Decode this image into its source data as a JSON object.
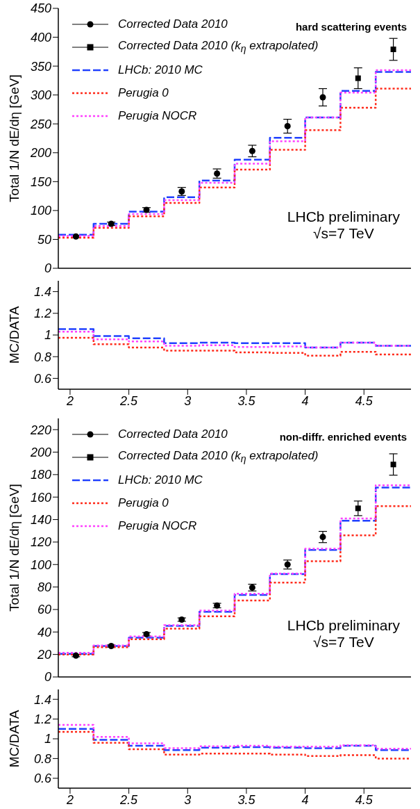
{
  "chart_data": [
    {
      "type": "step",
      "ylabel": "Total 1/N dE/dη [GeV]",
      "annotations": [
        "hard scattering events",
        "LHCb preliminary",
        "√s=7 TeV"
      ],
      "xlim": [
        1.9,
        4.9
      ],
      "xticks": [
        2,
        2.5,
        3,
        3.5,
        4,
        4.5
      ],
      "ylim": [
        0,
        450
      ],
      "yticks": [
        0,
        50,
        100,
        150,
        200,
        250,
        300,
        350,
        400,
        450
      ],
      "tick_labels": "y",
      "legend": "top left",
      "series": [
        {
          "name": "Corrected Data 2010",
          "type": "scatter",
          "marker": "circle",
          "color": "#000000",
          "x": [
            2.05,
            2.35,
            2.65,
            2.95,
            3.25,
            3.55,
            3.85,
            4.15
          ],
          "values": [
            55,
            77,
            101,
            133,
            164,
            203,
            246,
            296
          ],
          "errors": [
            2,
            3,
            4,
            7,
            8,
            10,
            12,
            15
          ]
        },
        {
          "name": "Corrected Data 2010 (k$_{η}$ extrapolated)",
          "type": "scatter",
          "marker": "square",
          "color": "#000000",
          "x": [
            4.45,
            4.75
          ],
          "values": [
            329,
            379
          ],
          "errors": [
            18,
            19
          ]
        },
        {
          "name": "LHCb: 2010 MC",
          "color": "#2040ff",
          "line_style": "dashed",
          "x": [
            1.9,
            2.2,
            2.5,
            2.8,
            3.1,
            3.4,
            3.7,
            4.0,
            4.3,
            4.6,
            4.9
          ],
          "values": [
            58,
            77,
            98,
            123,
            152,
            188,
            226,
            261,
            307,
            340,
            340
          ]
        },
        {
          "name": "Perugia 0",
          "color": "#ff2a1a",
          "line_style": "dotted",
          "x": [
            1.9,
            2.2,
            2.5,
            2.8,
            3.1,
            3.4,
            3.7,
            4.0,
            4.3,
            4.6,
            4.9
          ],
          "values": [
            53,
            70,
            90,
            113,
            140,
            171,
            205,
            239,
            278,
            311,
            311
          ]
        },
        {
          "name": "Perugia NOCR",
          "color": "#ff40ff",
          "line_style": "dotted",
          "x": [
            1.9,
            2.2,
            2.5,
            2.8,
            3.1,
            3.4,
            3.7,
            4.0,
            4.3,
            4.6,
            4.9
          ],
          "values": [
            56,
            73,
            94,
            118,
            148,
            181,
            220,
            261,
            304,
            343,
            343
          ]
        }
      ]
    },
    {
      "type": "step",
      "ylabel": "MC/DATA",
      "xlim": [
        1.9,
        4.9
      ],
      "xticks": [
        2,
        2.5,
        3,
        3.5,
        4,
        4.5
      ],
      "ylim": [
        0.5,
        1.5
      ],
      "yticks": [
        0.6,
        0.8,
        1,
        1.2,
        1.4
      ],
      "series": [
        {
          "color": "#2040ff",
          "line_style": "dashed",
          "x": [
            1.9,
            2.2,
            2.5,
            2.8,
            3.1,
            3.4,
            3.7,
            4.0,
            4.3,
            4.6,
            4.9
          ],
          "values": [
            1.055,
            0.99,
            0.97,
            0.925,
            0.93,
            0.925,
            0.925,
            0.885,
            0.93,
            0.9,
            0.9
          ]
        },
        {
          "color": "#ff2a1a",
          "line_style": "dotted",
          "x": [
            1.9,
            2.2,
            2.5,
            2.8,
            3.1,
            3.4,
            3.7,
            4.0,
            4.3,
            4.6,
            4.9
          ],
          "values": [
            0.975,
            0.915,
            0.885,
            0.855,
            0.855,
            0.84,
            0.835,
            0.81,
            0.845,
            0.82,
            0.82
          ]
        },
        {
          "color": "#ff40ff",
          "line_style": "dotted",
          "x": [
            1.9,
            2.2,
            2.5,
            2.8,
            3.1,
            3.4,
            3.7,
            4.0,
            4.3,
            4.6,
            4.9
          ],
          "values": [
            1.03,
            0.96,
            0.94,
            0.9,
            0.905,
            0.89,
            0.895,
            0.885,
            0.93,
            0.9,
            0.9
          ]
        }
      ]
    },
    {
      "type": "step",
      "ylabel": "Total 1/N dE/dη [GeV]",
      "annotations": [
        "non-diffr. enriched events",
        "LHCb preliminary",
        "√s=7 TeV"
      ],
      "xlim": [
        1.9,
        4.9
      ],
      "xticks": [
        2,
        2.5,
        3,
        3.5,
        4,
        4.5
      ],
      "ylim": [
        0,
        230
      ],
      "yticks": [
        0,
        20,
        40,
        60,
        80,
        100,
        120,
        140,
        160,
        180,
        200,
        220
      ],
      "tick_labels": "y",
      "legend": "top left",
      "series": [
        {
          "name": "Corrected Data 2010",
          "type": "scatter",
          "marker": "circle",
          "color": "#000000",
          "x": [
            2.05,
            2.35,
            2.65,
            2.95,
            3.25,
            3.55,
            3.85,
            4.15
          ],
          "values": [
            19,
            27.5,
            38,
            51,
            63.5,
            79.5,
            100,
            124.5
          ],
          "errors": [
            1,
            1,
            1.5,
            1.5,
            2,
            3,
            4,
            5
          ]
        },
        {
          "name": "Corrected Data 2010 (k$_{η}$ extrapolated)",
          "type": "scatter",
          "marker": "square",
          "color": "#000000",
          "x": [
            4.45,
            4.75
          ],
          "values": [
            150,
            189
          ],
          "errors": [
            6.5,
            9.5
          ]
        },
        {
          "name": "LHCb: 2010 MC",
          "color": "#2040ff",
          "line_style": "dashed",
          "x": [
            1.9,
            2.2,
            2.5,
            2.8,
            3.1,
            3.4,
            3.7,
            4.0,
            4.3,
            4.6,
            4.9
          ],
          "values": [
            20.5,
            27.5,
            35,
            45.5,
            58,
            73,
            91.5,
            113,
            139,
            168.5,
            168.5
          ]
        },
        {
          "name": "Perugia 0",
          "color": "#ff2a1a",
          "line_style": "dotted",
          "x": [
            1.9,
            2.2,
            2.5,
            2.8,
            3.1,
            3.4,
            3.7,
            4.0,
            4.3,
            4.6,
            4.9
          ],
          "values": [
            20,
            26.5,
            33.5,
            43,
            54,
            68,
            84,
            103,
            126,
            152,
            152
          ]
        },
        {
          "name": "Perugia NOCR",
          "color": "#ff40ff",
          "line_style": "dotted",
          "x": [
            1.9,
            2.2,
            2.5,
            2.8,
            3.1,
            3.4,
            3.7,
            4.0,
            4.3,
            4.6,
            4.9
          ],
          "values": [
            21.5,
            28,
            36,
            46,
            59,
            74,
            92,
            114,
            141,
            170.5,
            170.5
          ]
        }
      ]
    },
    {
      "type": "step",
      "ylabel": "MC/DATA",
      "xlim": [
        1.9,
        4.9
      ],
      "xticks": [
        2,
        2.5,
        3,
        3.5,
        4,
        4.5
      ],
      "ylim": [
        0.5,
        1.5
      ],
      "yticks": [
        0.6,
        0.8,
        1,
        1.2,
        1.4
      ],
      "series": [
        {
          "color": "#2040ff",
          "line_style": "dashed",
          "x": [
            1.9,
            2.2,
            2.5,
            2.8,
            3.1,
            3.4,
            3.7,
            4.0,
            4.3,
            4.6,
            4.9
          ],
          "values": [
            1.1,
            0.99,
            0.93,
            0.885,
            0.91,
            0.915,
            0.91,
            0.905,
            0.93,
            0.885,
            0.885
          ]
        },
        {
          "color": "#ff2a1a",
          "line_style": "dotted",
          "x": [
            1.9,
            2.2,
            2.5,
            2.8,
            3.1,
            3.4,
            3.7,
            4.0,
            4.3,
            4.6,
            4.9
          ],
          "values": [
            1.07,
            0.96,
            0.895,
            0.84,
            0.85,
            0.85,
            0.84,
            0.825,
            0.835,
            0.8,
            0.8
          ]
        },
        {
          "color": "#ff40ff",
          "line_style": "dotted",
          "x": [
            1.9,
            2.2,
            2.5,
            2.8,
            3.1,
            3.4,
            3.7,
            4.0,
            4.3,
            4.6,
            4.9
          ],
          "values": [
            1.14,
            1.02,
            0.955,
            0.905,
            0.925,
            0.93,
            0.92,
            0.92,
            0.935,
            0.9,
            0.9
          ]
        }
      ]
    }
  ]
}
